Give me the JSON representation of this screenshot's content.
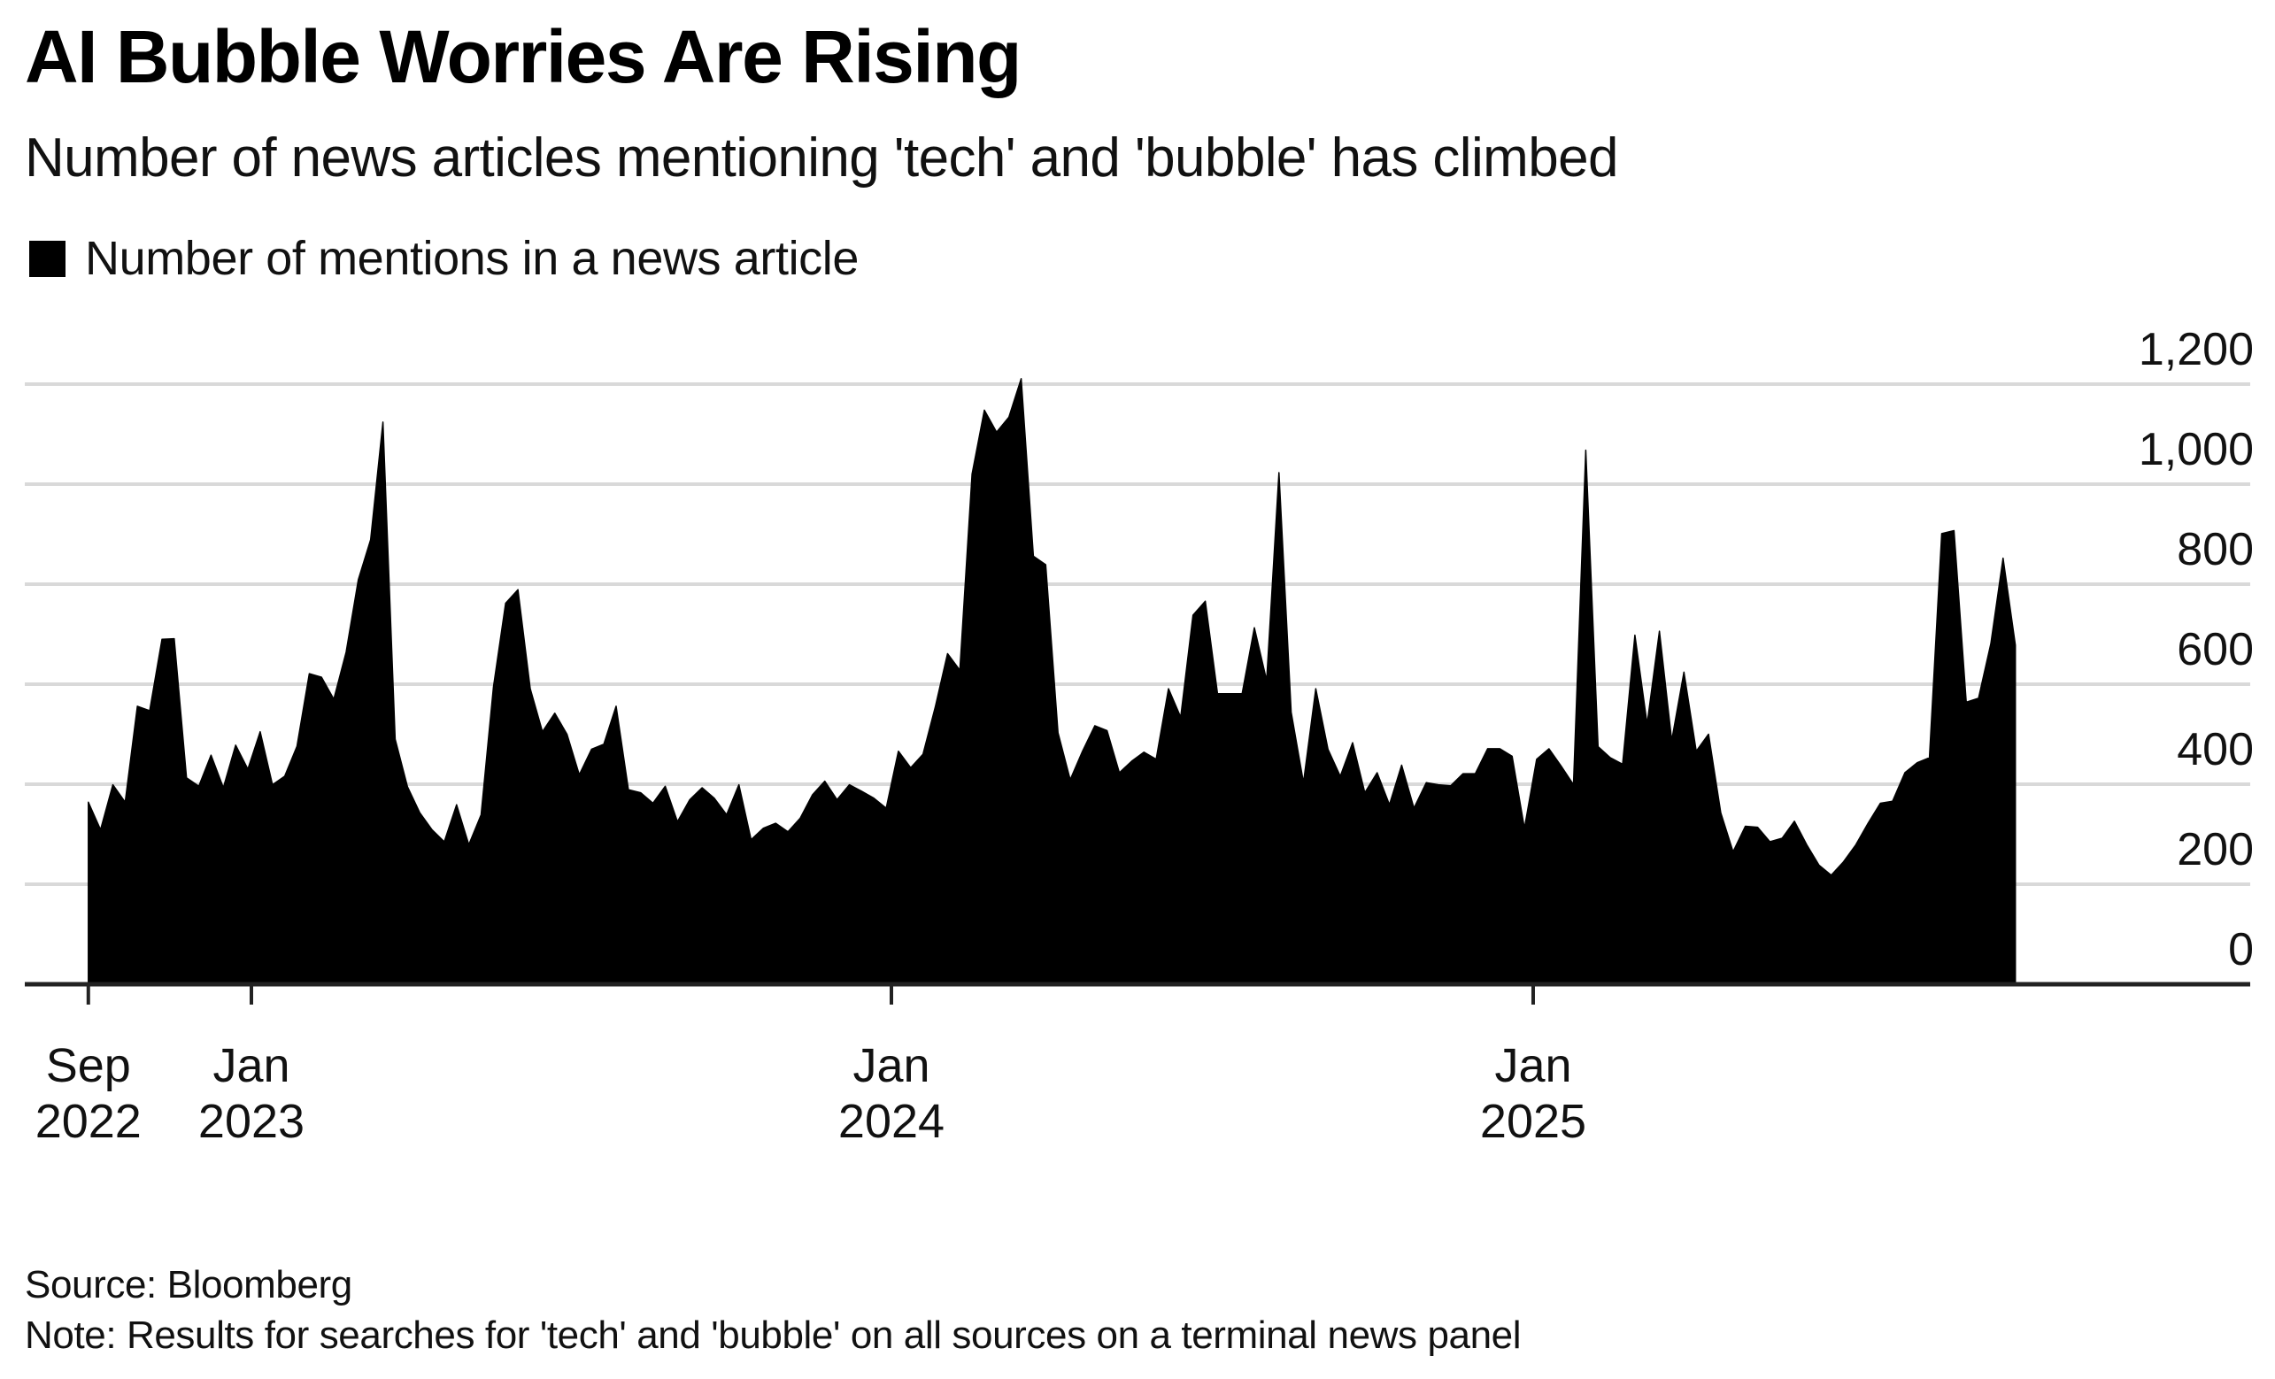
{
  "title": "AI Bubble Worries Are Rising",
  "subtitle": "Number of news articles mentioning 'tech' and 'bubble' has climbed",
  "legend": {
    "label": "Number of mentions in a news article",
    "color": "#000000"
  },
  "footer": {
    "source": "Source: Bloomberg",
    "note": "Note: Results for searches for 'tech' and 'bubble' on all sources on a terminal news panel"
  },
  "chart_data": {
    "type": "area",
    "title": "AI Bubble Worries Are Rising",
    "subtitle": "Number of news articles mentioning 'tech' and 'bubble' has climbed",
    "xlabel": "",
    "ylabel": "",
    "x_start": "2022-09-30",
    "x_frequency": "weekly",
    "ylim": [
      0,
      1200
    ],
    "yticks": [
      0,
      200,
      400,
      600,
      800,
      1000,
      1200
    ],
    "ytick_labels": [
      "0",
      "200",
      "400",
      "600",
      "800",
      "1,000",
      "1,200"
    ],
    "yaxis_side": "right",
    "xticks": [
      {
        "date": "2022-09-30",
        "line1": "Sep",
        "line2": "2022"
      },
      {
        "date": "2023-01-01",
        "line1": "Jan",
        "line2": "2023"
      },
      {
        "date": "2024-01-01",
        "line1": "Jan",
        "line2": "2024"
      },
      {
        "date": "2025-01-01",
        "line1": "Jan",
        "line2": "2025"
      }
    ],
    "grid": true,
    "legend_position": "top-left",
    "series": [
      {
        "name": "Number of mentions in a news article",
        "color": "#000000",
        "values": [
          364,
          309,
          399,
          364,
          556,
          547,
          690,
          691,
          413,
          396,
          458,
          393,
          478,
          430,
          505,
          399,
          416,
          476,
          621,
          614,
          570,
          664,
          809,
          889,
          1124,
          490,
          395,
          343,
          309,
          285,
          359,
          279,
          339,
          594,
          762,
          789,
          591,
          505,
          542,
          500,
          419,
          470,
          480,
          556,
          389,
          383,
          362,
          396,
          325,
          369,
          393,
          372,
          339,
          399,
          289,
          312,
          322,
          305,
          332,
          379,
          406,
          369,
          399,
          386,
          372,
          352,
          466,
          433,
          460,
          554,
          661,
          628,
          1020,
          1148,
          1104,
          1134,
          1211,
          856,
          839,
          503,
          409,
          466,
          517,
          507,
          423,
          446,
          464,
          450,
          591,
          534,
          738,
          766,
          581,
          581,
          581,
          713,
          607,
          1023,
          544,
          403,
          591,
          470,
          416,
          483,
          383,
          423,
          359,
          438,
          352,
          403,
          399,
          397,
          421,
          421,
          471,
          471,
          456,
          312,
          450,
          471,
          436,
          399,
          1068,
          475,
          453,
          440,
          698,
          520,
          706,
          487,
          624,
          466,
          500,
          343,
          265,
          316,
          314,
          285,
          292,
          326,
          279,
          238,
          218,
          245,
          279,
          322,
          362,
          366,
          423,
          443,
          453,
          901,
          907,
          564,
          572,
          681,
          852,
          678
        ]
      }
    ]
  }
}
